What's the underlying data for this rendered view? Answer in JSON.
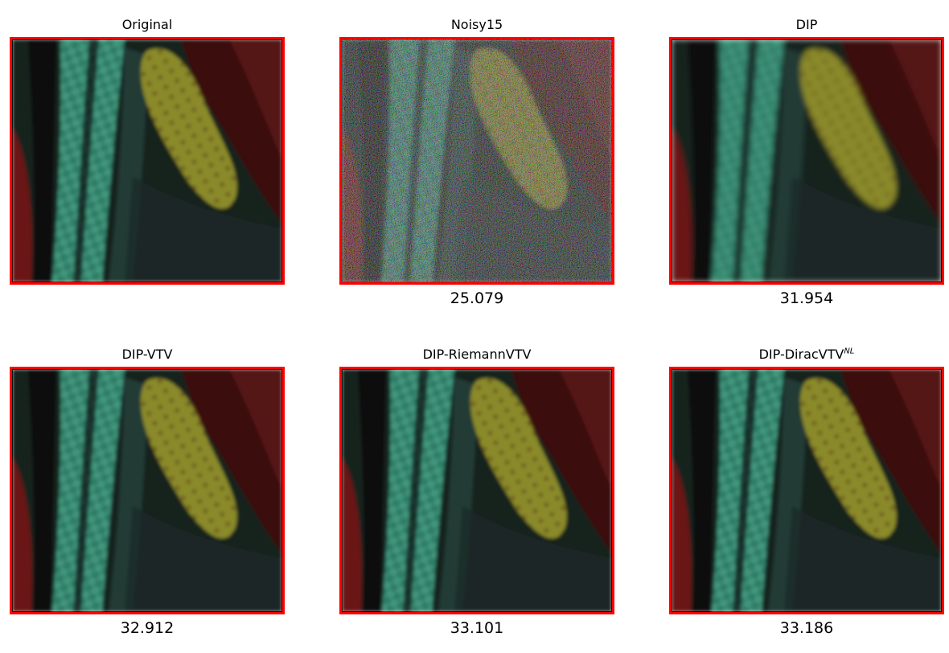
{
  "colors": {
    "border": "#ff0000",
    "teal": "#3a9c82",
    "yellow": "#8a8a2c",
    "darkred": "#5a1414",
    "dark": "#18201e"
  },
  "panels": [
    {
      "title": "Original",
      "score": ""
    },
    {
      "title": "Noisy15",
      "score": "25.079"
    },
    {
      "title": "DIP",
      "score": "31.954"
    },
    {
      "title": "DIP-VTV",
      "score": "32.912"
    },
    {
      "title": "DIP-RiemannVTV",
      "score": "33.101"
    },
    {
      "title_base": "DIP-DiracVTV",
      "title_sup": "NL",
      "score": "33.186"
    }
  ]
}
